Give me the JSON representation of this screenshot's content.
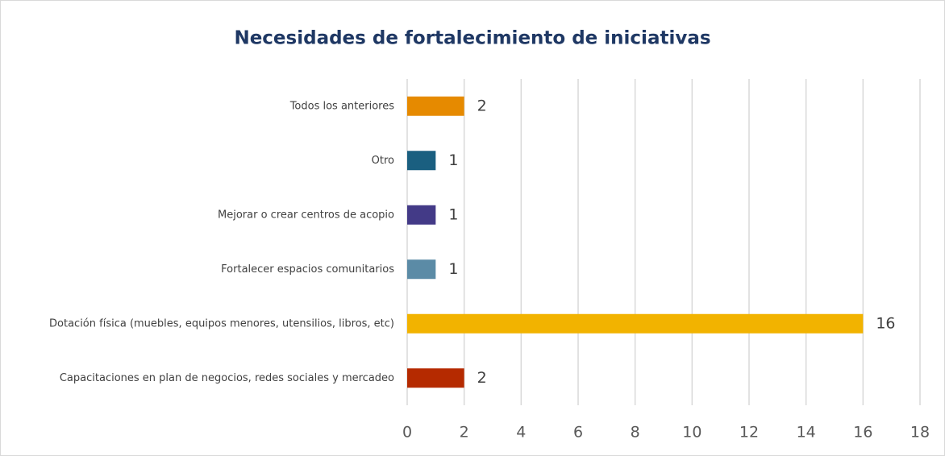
{
  "chart_data": {
    "type": "barh",
    "title": "Necesidades de fortalecimiento de iniciativas",
    "categories": [
      "Todos los anteriores",
      "Otro",
      "Mejorar o crear centros de acopio",
      "Fortalecer espacios comunitarios",
      "Dotación física (muebles, equipos menores, utensilios, libros, etc)",
      "Capacitaciones en plan de negocios, redes sociales y mercadeo"
    ],
    "values": [
      2,
      1,
      1,
      1,
      16,
      2
    ],
    "colors": [
      "#e68a00",
      "#1a5f80",
      "#433a87",
      "#5b8ba6",
      "#f2b300",
      "#b52a00"
    ],
    "xlim": [
      0,
      18
    ],
    "xticks": [
      0,
      2,
      4,
      6,
      8,
      10,
      12,
      14,
      16,
      18
    ],
    "grid": true
  }
}
